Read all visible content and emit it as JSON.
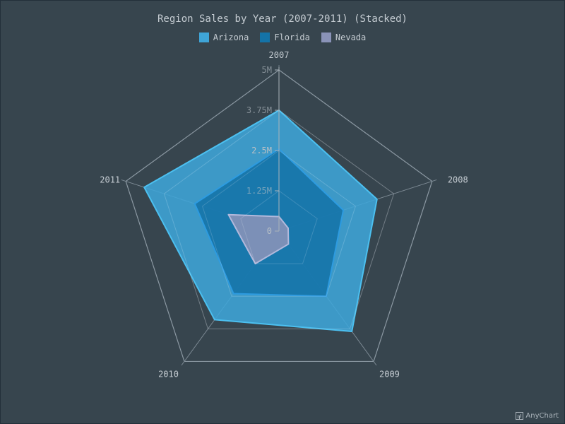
{
  "chart_data": {
    "type": "radar",
    "title": "Region Sales by Year (2007-2011) (Stacked)",
    "categories": [
      "2007",
      "2008",
      "2009",
      "2010",
      "2011"
    ],
    "stacked": true,
    "yticks": [
      "0",
      "1.25M",
      "2.5M",
      "3.75M",
      "5M"
    ],
    "ylim": [
      0,
      5000000
    ],
    "series": [
      {
        "name": "Nevada",
        "values": [
          450000,
          300000,
          500000,
          1250000,
          1650000
        ],
        "color": "#8a93b8"
      },
      {
        "name": "Florida",
        "values": [
          2100000,
          1800000,
          2000000,
          1150000,
          1100000
        ],
        "color": "#1473a8"
      },
      {
        "name": "Arizona",
        "values": [
          1200000,
          1100000,
          1350000,
          1000000,
          1650000
        ],
        "color": "#3fa5d8"
      }
    ],
    "legend_order": [
      "Arizona",
      "Florida",
      "Nevada"
    ],
    "legend_position": "top"
  },
  "credit": "AnyChart"
}
